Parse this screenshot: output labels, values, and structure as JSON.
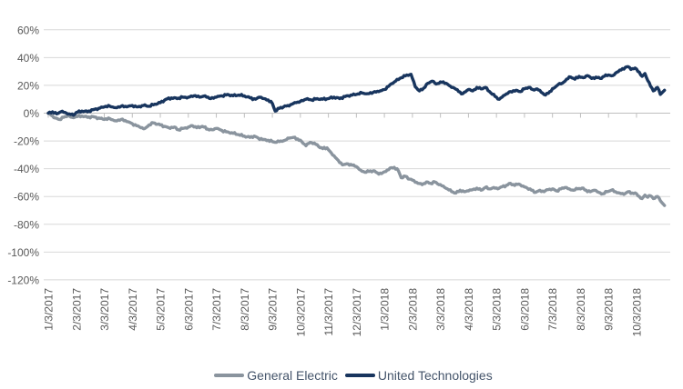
{
  "colors": {
    "background": "#FFFFFF",
    "gridline": "#D8D8D8",
    "axis_line": "#BFBFBF",
    "tick_text": "#595959",
    "legend_text": "#44546A",
    "ge_line": "#8A949E",
    "utx_line": "#18355E"
  },
  "chart_data": {
    "type": "line",
    "title": "",
    "xlabel": "",
    "ylabel": "",
    "x_unit": "months since 1/3/2017 (fractional = intra-month)",
    "ylim": [
      -120,
      60
    ],
    "grid": "horizontal",
    "legend_position": "bottom-center",
    "x_tick_labels": [
      "1/3/2017",
      "2/3/2017",
      "3/3/2017",
      "4/3/2017",
      "5/3/2017",
      "6/3/2017",
      "7/3/2017",
      "8/3/2017",
      "9/3/2017",
      "10/3/2017",
      "11/3/2017",
      "12/3/2017",
      "1/3/2018",
      "2/3/2018",
      "3/3/2018",
      "4/3/2018",
      "5/3/2018",
      "6/3/2018",
      "7/3/2018",
      "8/3/2018",
      "9/3/2018",
      "10/3/2018"
    ],
    "y_tick_values": [
      60,
      40,
      20,
      0,
      -20,
      -40,
      -60,
      -80,
      -100,
      -120
    ],
    "y_tick_labels": [
      "60%",
      "40%",
      "20%",
      "0%",
      "-20%",
      "-40%",
      "-60%",
      "-80%",
      "-100%",
      "-120%"
    ],
    "series": [
      {
        "name": "General Electric",
        "color": "#8A949E",
        "points": [
          [
            0,
            0
          ],
          [
            0.1,
            -1.5
          ],
          [
            0.25,
            -3.5
          ],
          [
            0.4,
            -4.5
          ],
          [
            0.55,
            -3
          ],
          [
            0.7,
            -2
          ],
          [
            0.85,
            -3
          ],
          [
            1,
            -2.5
          ],
          [
            1.2,
            -2
          ],
          [
            1.4,
            -3
          ],
          [
            1.6,
            -2.5
          ],
          [
            1.8,
            -3.5
          ],
          [
            2,
            -4.5
          ],
          [
            2.2,
            -4
          ],
          [
            2.4,
            -5.5
          ],
          [
            2.6,
            -4.5
          ],
          [
            2.8,
            -6
          ],
          [
            3,
            -7.5
          ],
          [
            3.15,
            -9
          ],
          [
            3.3,
            -10.5
          ],
          [
            3.45,
            -11
          ],
          [
            3.6,
            -8.5
          ],
          [
            3.75,
            -7
          ],
          [
            3.9,
            -8
          ],
          [
            4,
            -8.5
          ],
          [
            4.15,
            -9.5
          ],
          [
            4.3,
            -10.5
          ],
          [
            4.5,
            -10
          ],
          [
            4.65,
            -12
          ],
          [
            4.8,
            -11
          ],
          [
            5,
            -10
          ],
          [
            5.15,
            -9
          ],
          [
            5.3,
            -10.5
          ],
          [
            5.5,
            -9.5
          ],
          [
            5.7,
            -11.5
          ],
          [
            5.85,
            -12
          ],
          [
            6,
            -11
          ],
          [
            6.2,
            -12.5
          ],
          [
            6.4,
            -13.5
          ],
          [
            6.6,
            -14.5
          ],
          [
            6.8,
            -15.5
          ],
          [
            7,
            -16.5
          ],
          [
            7.2,
            -17.5
          ],
          [
            7.35,
            -16.5
          ],
          [
            7.5,
            -18
          ],
          [
            7.7,
            -19
          ],
          [
            7.85,
            -19.5
          ],
          [
            8,
            -20.5
          ],
          [
            8.15,
            -21
          ],
          [
            8.3,
            -20
          ],
          [
            8.45,
            -19.5
          ],
          [
            8.6,
            -18
          ],
          [
            8.75,
            -17.5
          ],
          [
            8.9,
            -18.5
          ],
          [
            9.05,
            -20.5
          ],
          [
            9.2,
            -23.5
          ],
          [
            9.35,
            -21
          ],
          [
            9.5,
            -21.5
          ],
          [
            9.65,
            -24
          ],
          [
            9.8,
            -25.5
          ],
          [
            9.95,
            -25
          ],
          [
            10.1,
            -28.5
          ],
          [
            10.25,
            -32
          ],
          [
            10.4,
            -35.5
          ],
          [
            10.55,
            -37
          ],
          [
            10.7,
            -36.5
          ],
          [
            10.85,
            -37.5
          ],
          [
            11,
            -38.5
          ],
          [
            11.15,
            -41
          ],
          [
            11.3,
            -42.5
          ],
          [
            11.45,
            -42
          ],
          [
            11.6,
            -41.5
          ],
          [
            11.75,
            -43
          ],
          [
            11.9,
            -43.5
          ],
          [
            12.05,
            -42
          ],
          [
            12.2,
            -39.5
          ],
          [
            12.35,
            -39
          ],
          [
            12.5,
            -41.5
          ],
          [
            12.6,
            -46.5
          ],
          [
            12.75,
            -45.5
          ],
          [
            12.9,
            -47.5
          ],
          [
            13.05,
            -48.5
          ],
          [
            13.2,
            -50.5
          ],
          [
            13.35,
            -51.5
          ],
          [
            13.5,
            -49.5
          ],
          [
            13.65,
            -50.5
          ],
          [
            13.8,
            -49.5
          ],
          [
            13.95,
            -51.5
          ],
          [
            14.1,
            -52.5
          ],
          [
            14.25,
            -54.5
          ],
          [
            14.4,
            -56.5
          ],
          [
            14.55,
            -57.5
          ],
          [
            14.7,
            -55.5
          ],
          [
            14.85,
            -56.5
          ],
          [
            15,
            -56
          ],
          [
            15.15,
            -55
          ],
          [
            15.3,
            -54
          ],
          [
            15.45,
            -55.5
          ],
          [
            15.6,
            -53.5
          ],
          [
            15.75,
            -54.5
          ],
          [
            15.9,
            -53.5
          ],
          [
            16.05,
            -54.5
          ],
          [
            16.2,
            -53
          ],
          [
            16.35,
            -52
          ],
          [
            16.5,
            -50.5
          ],
          [
            16.65,
            -52
          ],
          [
            16.8,
            -51
          ],
          [
            16.95,
            -52.5
          ],
          [
            17.1,
            -54
          ],
          [
            17.25,
            -55.5
          ],
          [
            17.4,
            -57
          ],
          [
            17.55,
            -55.5
          ],
          [
            17.7,
            -56.5
          ],
          [
            17.85,
            -55
          ],
          [
            18,
            -54.5
          ],
          [
            18.15,
            -56
          ],
          [
            18.3,
            -54.5
          ],
          [
            18.45,
            -53.5
          ],
          [
            18.6,
            -54.5
          ],
          [
            18.75,
            -55.5
          ],
          [
            18.9,
            -54.5
          ],
          [
            19.05,
            -54
          ],
          [
            19.2,
            -55.5
          ],
          [
            19.35,
            -56.5
          ],
          [
            19.5,
            -55.5
          ],
          [
            19.65,
            -57
          ],
          [
            19.8,
            -58
          ],
          [
            19.95,
            -56.5
          ],
          [
            20.1,
            -55.5
          ],
          [
            20.25,
            -56.5
          ],
          [
            20.4,
            -57.5
          ],
          [
            20.55,
            -58.5
          ],
          [
            20.7,
            -56.5
          ],
          [
            20.85,
            -57.5
          ],
          [
            21,
            -58
          ],
          [
            21.1,
            -60
          ],
          [
            21.2,
            -61.5
          ],
          [
            21.3,
            -59
          ],
          [
            21.4,
            -60.5
          ],
          [
            21.5,
            -59.5
          ],
          [
            21.6,
            -61.5
          ],
          [
            21.75,
            -60
          ],
          [
            21.85,
            -63
          ],
          [
            22,
            -66.5
          ]
        ]
      },
      {
        "name": "United Technologies",
        "color": "#18355E",
        "points": [
          [
            0,
            0
          ],
          [
            0.15,
            1
          ],
          [
            0.3,
            -0.5
          ],
          [
            0.45,
            1
          ],
          [
            0.6,
            0.5
          ],
          [
            0.75,
            -0.5
          ],
          [
            0.9,
            -1.5
          ],
          [
            1,
            0.5
          ],
          [
            1.2,
            1.5
          ],
          [
            1.4,
            1
          ],
          [
            1.6,
            2.5
          ],
          [
            1.8,
            3.5
          ],
          [
            2,
            4.5
          ],
          [
            2.2,
            5
          ],
          [
            2.4,
            4
          ],
          [
            2.6,
            5
          ],
          [
            2.8,
            4.5
          ],
          [
            3,
            5.5
          ],
          [
            3.2,
            4.5
          ],
          [
            3.4,
            5.5
          ],
          [
            3.6,
            5
          ],
          [
            3.8,
            6.5
          ],
          [
            4,
            7.5
          ],
          [
            4.2,
            10
          ],
          [
            4.4,
            11
          ],
          [
            4.6,
            10.5
          ],
          [
            4.8,
            11.5
          ],
          [
            5,
            11.5
          ],
          [
            5.2,
            12.5
          ],
          [
            5.4,
            11.5
          ],
          [
            5.6,
            12.5
          ],
          [
            5.8,
            10.5
          ],
          [
            6,
            11.5
          ],
          [
            6.2,
            12.5
          ],
          [
            6.4,
            13.5
          ],
          [
            6.6,
            12.5
          ],
          [
            6.8,
            13
          ],
          [
            7,
            12.5
          ],
          [
            7.2,
            11
          ],
          [
            7.4,
            10
          ],
          [
            7.55,
            11.5
          ],
          [
            7.7,
            10.5
          ],
          [
            7.85,
            9.5
          ],
          [
            8,
            7
          ],
          [
            8.1,
            1.5
          ],
          [
            8.25,
            3.5
          ],
          [
            8.4,
            4.5
          ],
          [
            8.55,
            5.5
          ],
          [
            8.7,
            6.5
          ],
          [
            8.85,
            7.5
          ],
          [
            9,
            8.5
          ],
          [
            9.2,
            10
          ],
          [
            9.4,
            9.5
          ],
          [
            9.6,
            10.5
          ],
          [
            9.8,
            10
          ],
          [
            10,
            10.5
          ],
          [
            10.2,
            11.5
          ],
          [
            10.4,
            10.5
          ],
          [
            10.6,
            12
          ],
          [
            10.8,
            13
          ],
          [
            11,
            13.5
          ],
          [
            11.2,
            14.5
          ],
          [
            11.4,
            14
          ],
          [
            11.6,
            15
          ],
          [
            11.8,
            15.5
          ],
          [
            12,
            17
          ],
          [
            12.2,
            20.5
          ],
          [
            12.4,
            23
          ],
          [
            12.6,
            25.5
          ],
          [
            12.8,
            27.5
          ],
          [
            12.95,
            28
          ],
          [
            13.1,
            19
          ],
          [
            13.25,
            16
          ],
          [
            13.4,
            18
          ],
          [
            13.55,
            21.5
          ],
          [
            13.7,
            23
          ],
          [
            13.85,
            21
          ],
          [
            14,
            22.5
          ],
          [
            14.2,
            21.5
          ],
          [
            14.35,
            19.5
          ],
          [
            14.5,
            18
          ],
          [
            14.65,
            15.5
          ],
          [
            14.8,
            14
          ],
          [
            15,
            17
          ],
          [
            15.15,
            16
          ],
          [
            15.3,
            18.5
          ],
          [
            15.45,
            17.5
          ],
          [
            15.6,
            18.5
          ],
          [
            15.8,
            14.5
          ],
          [
            16,
            11.5
          ],
          [
            16.1,
            10
          ],
          [
            16.3,
            13
          ],
          [
            16.5,
            15.5
          ],
          [
            16.7,
            16.5
          ],
          [
            16.85,
            15.5
          ],
          [
            17,
            17.5
          ],
          [
            17.15,
            18.5
          ],
          [
            17.3,
            17
          ],
          [
            17.45,
            17.5
          ],
          [
            17.6,
            15
          ],
          [
            17.75,
            13
          ],
          [
            17.9,
            15.5
          ],
          [
            18.05,
            18
          ],
          [
            18.2,
            20.5
          ],
          [
            18.35,
            21.5
          ],
          [
            18.5,
            24.5
          ],
          [
            18.65,
            26
          ],
          [
            18.8,
            24.5
          ],
          [
            18.95,
            26.5
          ],
          [
            19.1,
            25.5
          ],
          [
            19.25,
            27
          ],
          [
            19.4,
            25
          ],
          [
            19.55,
            26
          ],
          [
            19.7,
            25
          ],
          [
            19.85,
            26.5
          ],
          [
            20,
            27.5
          ],
          [
            20.15,
            27
          ],
          [
            20.3,
            29.5
          ],
          [
            20.45,
            31
          ],
          [
            20.6,
            33
          ],
          [
            20.7,
            33.5
          ],
          [
            20.8,
            31.5
          ],
          [
            20.95,
            32.5
          ],
          [
            21.1,
            29.5
          ],
          [
            21.2,
            26.5
          ],
          [
            21.3,
            28.5
          ],
          [
            21.4,
            23.5
          ],
          [
            21.5,
            19.5
          ],
          [
            21.6,
            16
          ],
          [
            21.75,
            18.5
          ],
          [
            21.85,
            13.5
          ],
          [
            22,
            16.5
          ]
        ]
      }
    ]
  }
}
